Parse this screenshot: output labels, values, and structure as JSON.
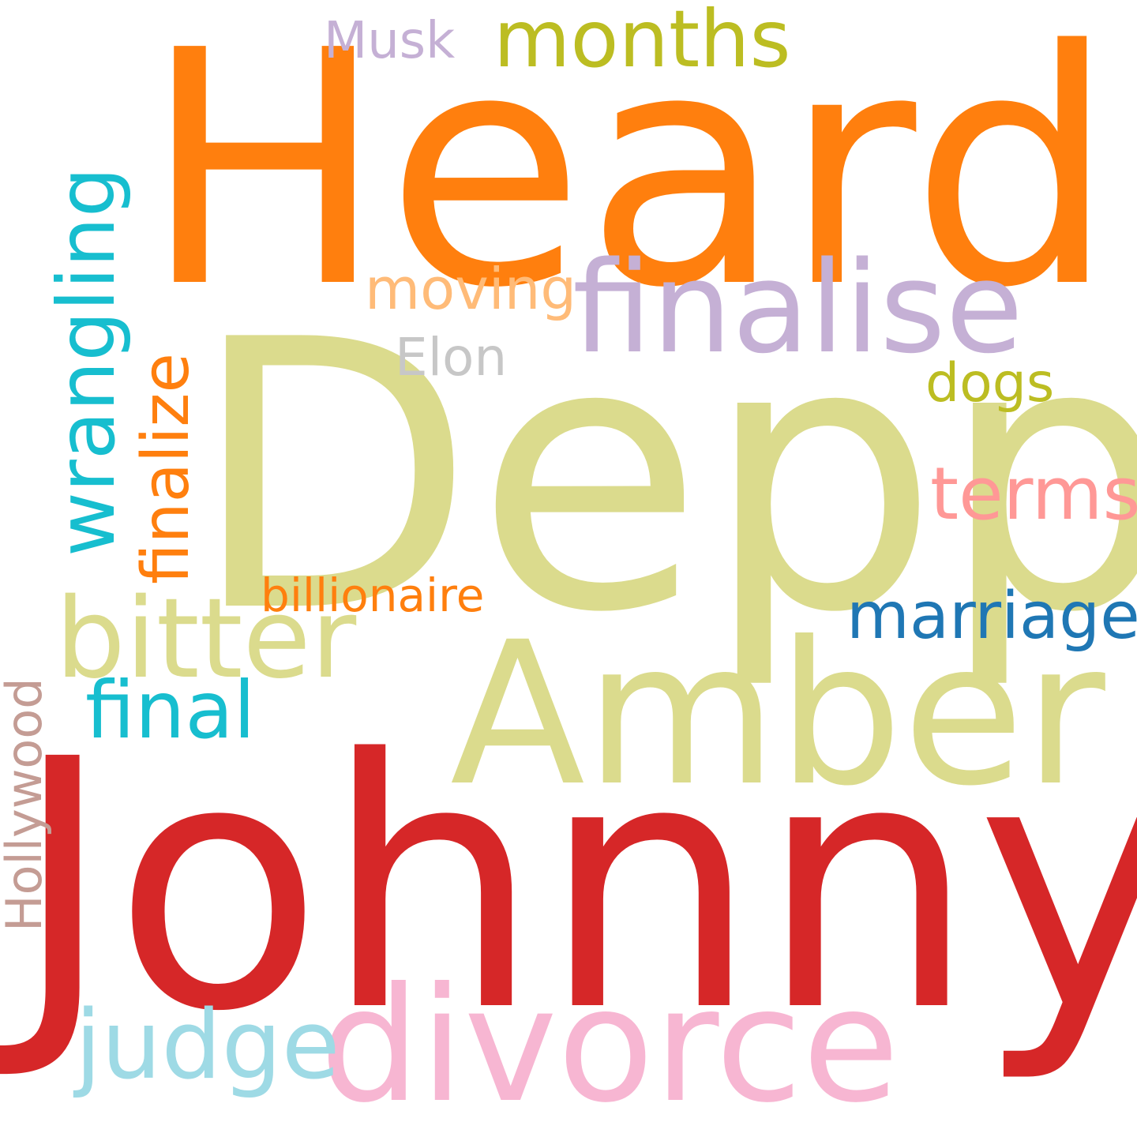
{
  "word_cloud": {
    "words": [
      {
        "text": "Heard",
        "color": "#ff7f0e",
        "orientation": "horizontal"
      },
      {
        "text": "Depp",
        "color": "#dbdb8d",
        "orientation": "horizontal"
      },
      {
        "text": "Johnny",
        "color": "#d62728",
        "orientation": "horizontal"
      },
      {
        "text": "Amber",
        "color": "#dbdb8d",
        "orientation": "horizontal"
      },
      {
        "text": "divorce",
        "color": "#f7b6d2",
        "orientation": "horizontal"
      },
      {
        "text": "finalise",
        "color": "#c5b0d5",
        "orientation": "horizontal"
      },
      {
        "text": "months",
        "color": "#bcbd22",
        "orientation": "horizontal"
      },
      {
        "text": "wrangling",
        "color": "#17becf",
        "orientation": "vertical"
      },
      {
        "text": "finalize",
        "color": "#ff7f0e",
        "orientation": "vertical"
      },
      {
        "text": "bitter",
        "color": "#dbdb8d",
        "orientation": "horizontal"
      },
      {
        "text": "terms",
        "color": "#ff9896",
        "orientation": "horizontal"
      },
      {
        "text": "final",
        "color": "#17becf",
        "orientation": "horizontal"
      },
      {
        "text": "marriage",
        "color": "#1f77b4",
        "orientation": "horizontal"
      },
      {
        "text": "judge",
        "color": "#9edae5",
        "orientation": "horizontal"
      },
      {
        "text": "moving",
        "color": "#ffbb78",
        "orientation": "horizontal"
      },
      {
        "text": "Musk",
        "color": "#c5b0d5",
        "orientation": "horizontal"
      },
      {
        "text": "Elon",
        "color": "#c7c7c7",
        "orientation": "horizontal"
      },
      {
        "text": "dogs",
        "color": "#bcbd22",
        "orientation": "horizontal"
      },
      {
        "text": "billionaire",
        "color": "#ff7f0e",
        "orientation": "horizontal"
      },
      {
        "text": "Hollywood",
        "color": "#c49c94",
        "orientation": "vertical"
      }
    ]
  }
}
